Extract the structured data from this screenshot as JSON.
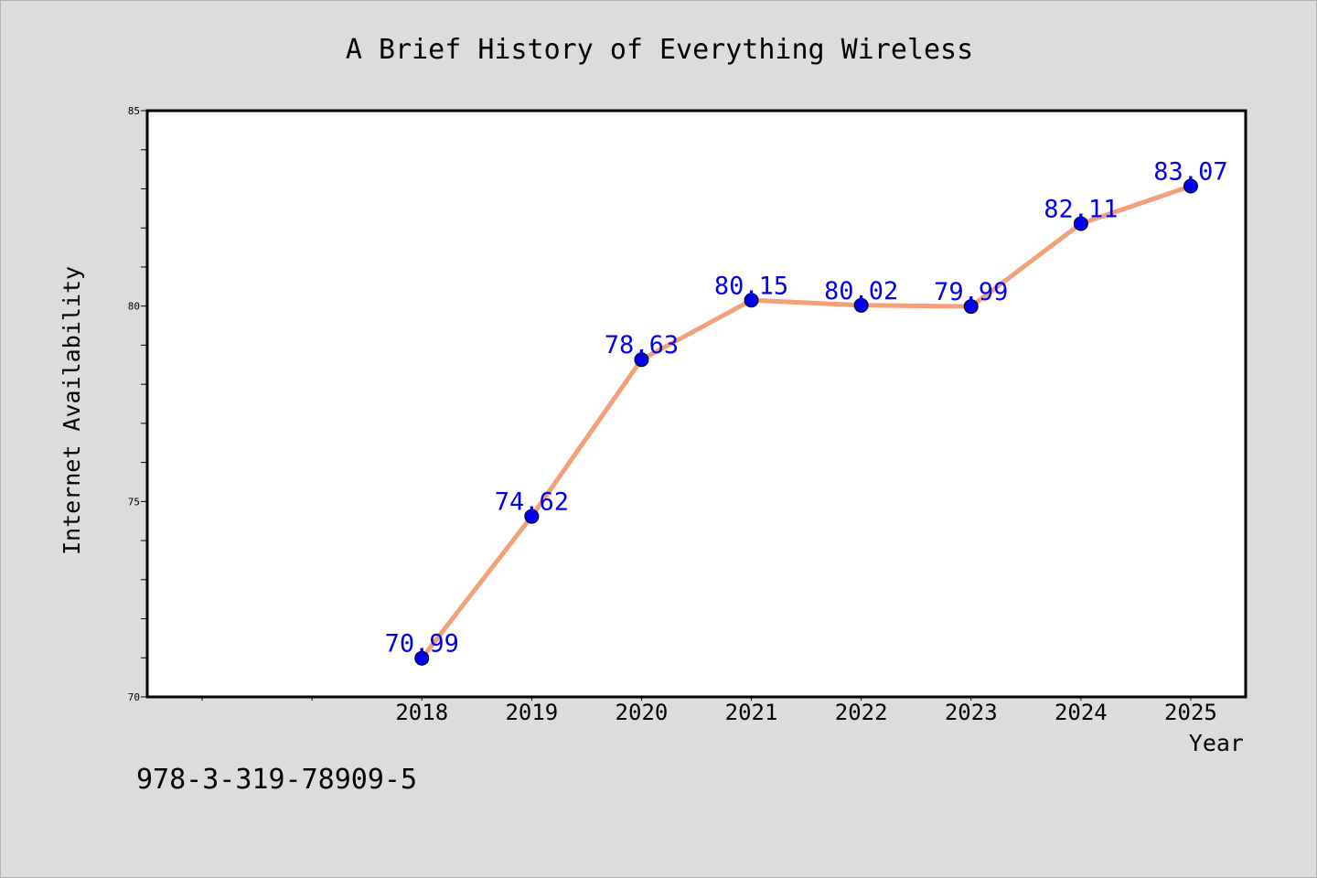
{
  "chart_data": {
    "type": "line",
    "title": "A Brief History of Everything Wireless",
    "xlabel": "Year",
    "ylabel": "Internet Availability",
    "categories": [
      "2018",
      "2019",
      "2020",
      "2021",
      "2022",
      "2023",
      "2024",
      "2025"
    ],
    "values": [
      70.99,
      74.62,
      78.63,
      80.15,
      80.02,
      79.99,
      82.11,
      83.07
    ],
    "data_labels": [
      "70.99",
      "74.62",
      "78.63",
      "80.15",
      "80.02",
      "79.99",
      "82.11",
      "83.07"
    ],
    "ylim": [
      70,
      85
    ],
    "yticks": [
      "70",
      "75",
      "80",
      "85"
    ],
    "grid": false,
    "line_color": "#f4a07a",
    "marker_color": "#0000ee",
    "label_color": "#0000ee"
  },
  "footer": {
    "isbn": "978-3-319-78909-5"
  }
}
